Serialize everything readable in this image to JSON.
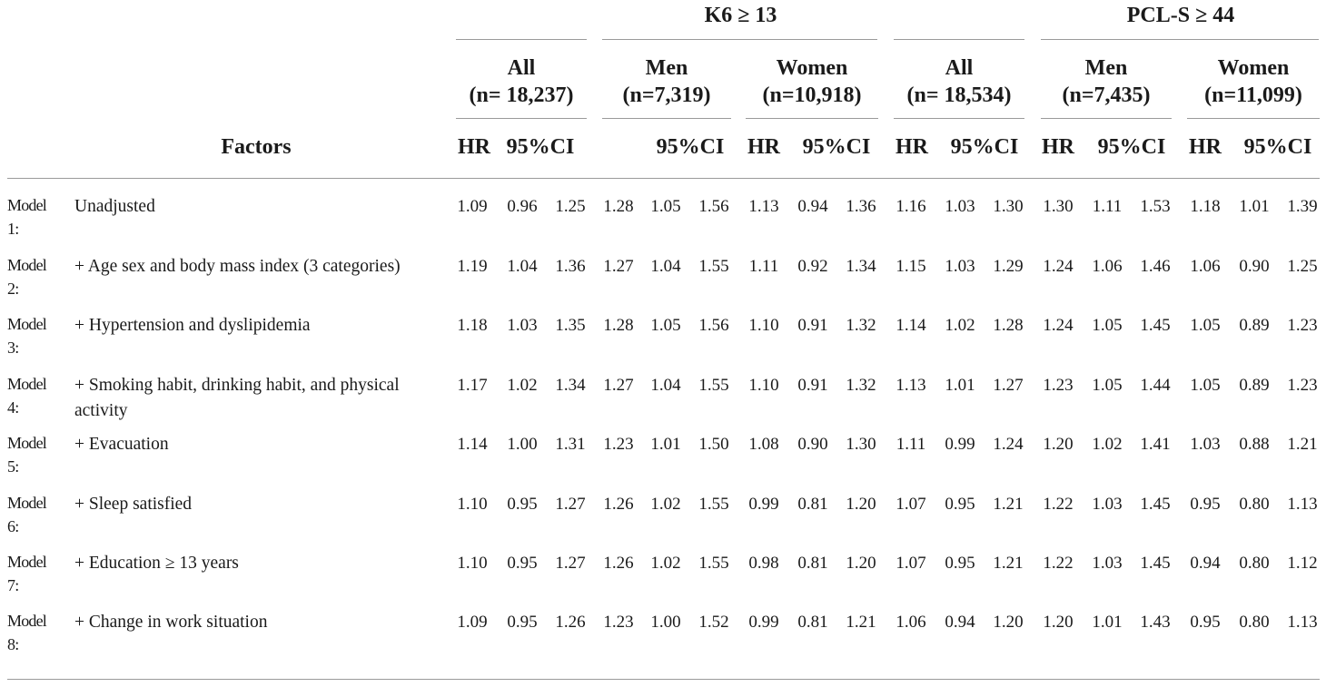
{
  "groups": [
    {
      "label": "K6 ≥ 13"
    },
    {
      "label": "PCL-S ≥ 44"
    }
  ],
  "subgroups": [
    {
      "line1": "All",
      "line2": "(n= 18,237)"
    },
    {
      "line1": "Men",
      "line2": "(n=7,319)"
    },
    {
      "line1": "Women",
      "line2": "(n=10,918)"
    },
    {
      "line1": "All",
      "line2": "(n= 18,534)"
    },
    {
      "line1": "Men",
      "line2": "(n=7,435)"
    },
    {
      "line1": "Women",
      "line2": "(n=11,099)"
    }
  ],
  "column_headers": {
    "factors": "Factors",
    "hr": "HR",
    "ci": "95%CI",
    "per_subgroup": [
      {
        "hr": "HR",
        "ci": "95%CI"
      },
      {
        "hr": "",
        "ci": "95%CI"
      },
      {
        "hr": "HR",
        "ci": "95%CI"
      },
      {
        "hr": "HR",
        "ci": "95%CI"
      },
      {
        "hr": "HR",
        "ci": "95%CI"
      },
      {
        "hr": "HR",
        "ci": "95%CI"
      }
    ]
  },
  "rows": [
    {
      "model_line1": "Model",
      "model_line2": "1:",
      "factor": "Unadjusted",
      "values": [
        "1.09",
        "0.96",
        "1.25",
        "1.28",
        "1.05",
        "1.56",
        "1.13",
        "0.94",
        "1.36",
        "1.16",
        "1.03",
        "1.30",
        "1.30",
        "1.11",
        "1.53",
        "1.18",
        "1.01",
        "1.39"
      ]
    },
    {
      "model_line1": "Model",
      "model_line2": "2:",
      "factor": "+ Age sex and body mass index (3 categories)",
      "values": [
        "1.19",
        "1.04",
        "1.36",
        "1.27",
        "1.04",
        "1.55",
        "1.11",
        "0.92",
        "1.34",
        "1.15",
        "1.03",
        "1.29",
        "1.24",
        "1.06",
        "1.46",
        "1.06",
        "0.90",
        "1.25"
      ]
    },
    {
      "model_line1": "Model",
      "model_line2": "3:",
      "factor": "+ Hypertension and dyslipidemia",
      "values": [
        "1.18",
        "1.03",
        "1.35",
        "1.28",
        "1.05",
        "1.56",
        "1.10",
        "0.91",
        "1.32",
        "1.14",
        "1.02",
        "1.28",
        "1.24",
        "1.05",
        "1.45",
        "1.05",
        "0.89",
        "1.23"
      ]
    },
    {
      "model_line1": "Model",
      "model_line2": "4:",
      "factor": "+ Smoking habit, drinking habit, and physical activity",
      "values": [
        "1.17",
        "1.02",
        "1.34",
        "1.27",
        "1.04",
        "1.55",
        "1.10",
        "0.91",
        "1.32",
        "1.13",
        "1.01",
        "1.27",
        "1.23",
        "1.05",
        "1.44",
        "1.05",
        "0.89",
        "1.23"
      ]
    },
    {
      "model_line1": "Model",
      "model_line2": "5:",
      "factor": "+ Evacuation",
      "values": [
        "1.14",
        "1.00",
        "1.31",
        "1.23",
        "1.01",
        "1.50",
        "1.08",
        "0.90",
        "1.30",
        "1.11",
        "0.99",
        "1.24",
        "1.20",
        "1.02",
        "1.41",
        "1.03",
        "0.88",
        "1.21"
      ]
    },
    {
      "model_line1": "Model",
      "model_line2": "6:",
      "factor": "+ Sleep satisfied",
      "values": [
        "1.10",
        "0.95",
        "1.27",
        "1.26",
        "1.02",
        "1.55",
        "0.99",
        "0.81",
        "1.20",
        "1.07",
        "0.95",
        "1.21",
        "1.22",
        "1.03",
        "1.45",
        "0.95",
        "0.80",
        "1.13"
      ]
    },
    {
      "model_line1": "Model",
      "model_line2": "7:",
      "factor": "+ Education ≥ 13 years",
      "values": [
        "1.10",
        "0.95",
        "1.27",
        "1.26",
        "1.02",
        "1.55",
        "0.98",
        "0.81",
        "1.20",
        "1.07",
        "0.95",
        "1.21",
        "1.22",
        "1.03",
        "1.45",
        "0.94",
        "0.80",
        "1.12"
      ]
    },
    {
      "model_line1": "Model",
      "model_line2": "8:",
      "factor": "+ Change in work situation",
      "values": [
        "1.09",
        "0.95",
        "1.26",
        "1.23",
        "1.00",
        "1.52",
        "0.99",
        "0.81",
        "1.21",
        "1.06",
        "0.94",
        "1.20",
        "1.20",
        "1.01",
        "1.43",
        "0.95",
        "0.80",
        "1.13"
      ]
    }
  ]
}
